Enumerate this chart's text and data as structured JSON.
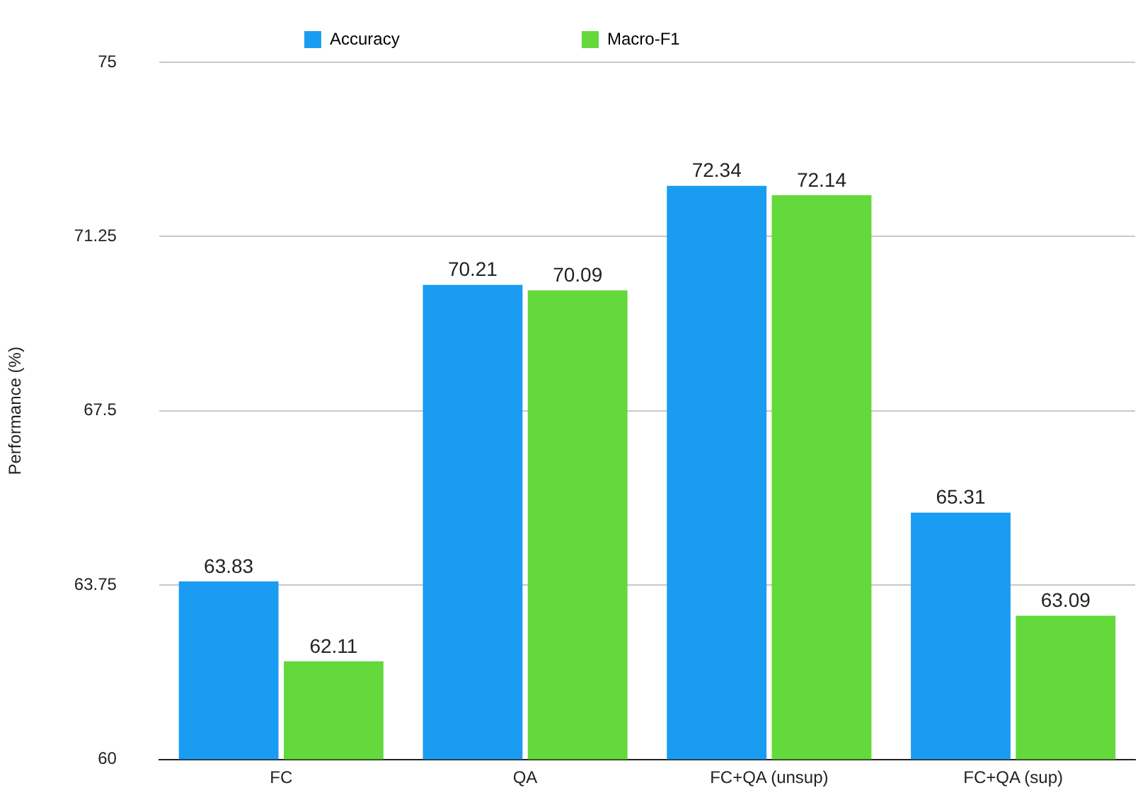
{
  "chart_data": {
    "type": "bar",
    "ylabel": "Performance (%)",
    "categories": [
      "FC",
      "QA",
      "FC+QA (unsup)",
      "FC+QA (sup)"
    ],
    "series": [
      {
        "name": "Accuracy",
        "color": "#1a9cf2",
        "values": [
          63.83,
          70.21,
          72.34,
          65.31
        ]
      },
      {
        "name": "Macro-F1",
        "color": "#63d93b",
        "values": [
          62.11,
          70.09,
          72.14,
          63.09
        ]
      }
    ],
    "ylim": [
      60,
      75
    ],
    "yticks": [
      60,
      63.75,
      67.5,
      71.25,
      75
    ],
    "grid": "y",
    "legend": "top",
    "data_labels": true
  }
}
